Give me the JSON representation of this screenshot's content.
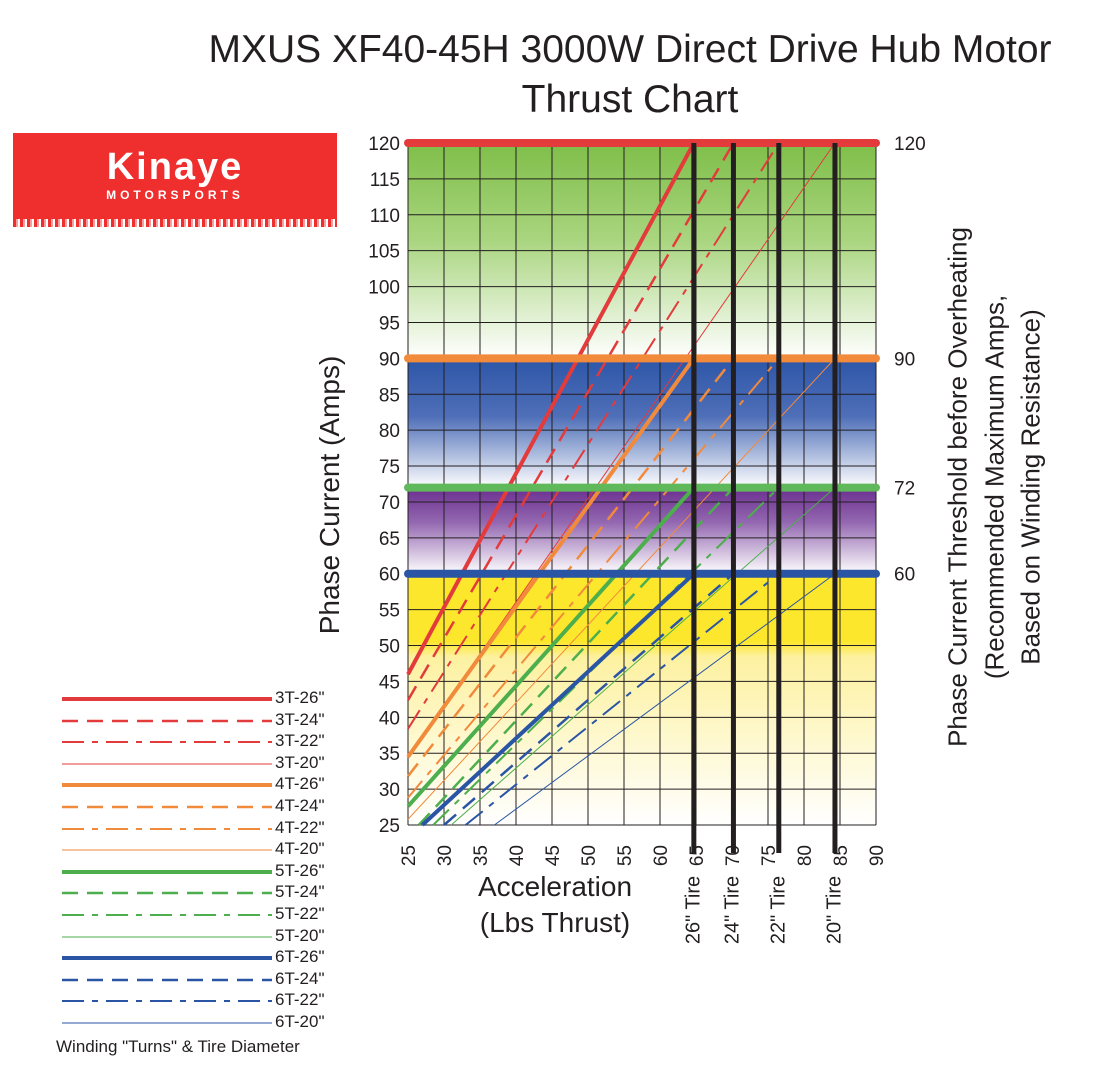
{
  "title_line1": "MXUS XF40-45H 3000W Direct Drive Hub Motor",
  "title_line2": "Thrust Chart",
  "logo": {
    "name": "Kinaye",
    "sub": "MOTORSPORTS",
    "color": "#ef2e2e"
  },
  "axes": {
    "x_title_line1": "Acceleration",
    "x_title_line2": "(Lbs Thrust)",
    "y_title": "Phase Current (Amps)",
    "right_title_line1": "Phase Current Threshold before Overheating",
    "right_title_line2": "(Recommended Maximum Amps,",
    "right_title_line3": "Based on Winding Resistance)"
  },
  "legend_title": "Winding \"Turns\" & Tire Diameter",
  "chart_data": {
    "type": "line",
    "xlim": [
      25,
      90
    ],
    "ylim": [
      25,
      120
    ],
    "x_ticks": [
      "25",
      "30",
      "35",
      "40",
      "45",
      "50",
      "55",
      "60",
      "65",
      "70",
      "75",
      "80",
      "85",
      "90"
    ],
    "y_ticks": [
      "25",
      "30",
      "35",
      "40",
      "45",
      "50",
      "55",
      "60",
      "65",
      "70",
      "75",
      "80",
      "85",
      "90",
      "95",
      "100",
      "105",
      "110",
      "115",
      "120"
    ],
    "grid": true,
    "thresholds": [
      {
        "label": "120",
        "value": 120,
        "color": "#e33b3b",
        "band": [
          90,
          120
        ],
        "band_color": "#82c04c"
      },
      {
        "label": "90",
        "value": 90,
        "color": "#f28a3b",
        "band": [
          72,
          90
        ],
        "band_color": "#2d56a8"
      },
      {
        "label": "72",
        "value": 72,
        "color": "#5fb85a",
        "band": [
          60,
          72
        ],
        "band_color": "#6a2f8f"
      },
      {
        "label": "60",
        "value": 60,
        "color": "#2a55a5",
        "band": [
          25,
          60
        ],
        "band_color": "#fdea2c"
      }
    ],
    "tire_markers": [
      {
        "label": "26\" Tire",
        "x": 64.7
      },
      {
        "label": "24\" Tire",
        "x": 70.2
      },
      {
        "label": "22\" Tire",
        "x": 76.5
      },
      {
        "label": "20\" Tire",
        "x": 84.3
      }
    ],
    "series": [
      {
        "name": "3T-26\"",
        "color": "#e33b3b",
        "dash": "solid",
        "width": 4,
        "x": [
          25,
          64.7
        ],
        "y": [
          46,
          120
        ]
      },
      {
        "name": "3T-24\"",
        "color": "#e33b3b",
        "dash": "dash",
        "width": 2.5,
        "x": [
          25,
          70.2
        ],
        "y": [
          42.4,
          120
        ]
      },
      {
        "name": "3T-22\"",
        "color": "#e33b3b",
        "dash": "dashdot",
        "width": 2,
        "x": [
          25,
          76.5
        ],
        "y": [
          38.4,
          120
        ]
      },
      {
        "name": "3T-20\"",
        "color": "#e33b3b",
        "dash": "solid",
        "width": 1,
        "x": [
          25,
          84.3
        ],
        "y": [
          34.4,
          120
        ]
      },
      {
        "name": "4T-26\"",
        "color": "#f28a3b",
        "dash": "solid",
        "width": 4,
        "x": [
          25,
          64.7
        ],
        "y": [
          34.5,
          90
        ]
      },
      {
        "name": "4T-24\"",
        "color": "#f28a3b",
        "dash": "dash",
        "width": 2.5,
        "x": [
          25,
          70.2
        ],
        "y": [
          31.8,
          90
        ]
      },
      {
        "name": "4T-22\"",
        "color": "#f28a3b",
        "dash": "dashdot",
        "width": 2,
        "x": [
          25,
          76.5
        ],
        "y": [
          28.8,
          90
        ]
      },
      {
        "name": "4T-20\"",
        "color": "#f28a3b",
        "dash": "solid",
        "width": 1,
        "x": [
          25,
          84.3
        ],
        "y": [
          25.8,
          90
        ]
      },
      {
        "name": "5T-26\"",
        "color": "#4cae4c",
        "dash": "solid",
        "width": 4,
        "x": [
          25,
          64.7
        ],
        "y": [
          27.6,
          72
        ]
      },
      {
        "name": "5T-24\"",
        "color": "#4cae4c",
        "dash": "dash",
        "width": 2.5,
        "x": [
          26.5,
          70.2
        ],
        "y": [
          25,
          72
        ]
      },
      {
        "name": "5T-22\"",
        "color": "#4cae4c",
        "dash": "dashdot",
        "width": 2,
        "x": [
          28.5,
          76.5
        ],
        "y": [
          25,
          72
        ]
      },
      {
        "name": "5T-20\"",
        "color": "#4cae4c",
        "dash": "solid",
        "width": 1,
        "x": [
          31,
          84.3
        ],
        "y": [
          25,
          72
        ]
      },
      {
        "name": "6T-26\"",
        "color": "#2a55a5",
        "dash": "solid",
        "width": 4,
        "x": [
          27,
          64.7
        ],
        "y": [
          25,
          60
        ]
      },
      {
        "name": "6T-24\"",
        "color": "#2a55a5",
        "dash": "dash",
        "width": 2.5,
        "x": [
          30,
          70.2
        ],
        "y": [
          25,
          60
        ]
      },
      {
        "name": "6T-22\"",
        "color": "#2a55a5",
        "dash": "dashdot",
        "width": 2,
        "x": [
          33,
          76.5
        ],
        "y": [
          25,
          60
        ]
      },
      {
        "name": "6T-20\"",
        "color": "#2a55a5",
        "dash": "solid",
        "width": 1,
        "x": [
          37,
          84.3
        ],
        "y": [
          25,
          60
        ]
      }
    ]
  }
}
